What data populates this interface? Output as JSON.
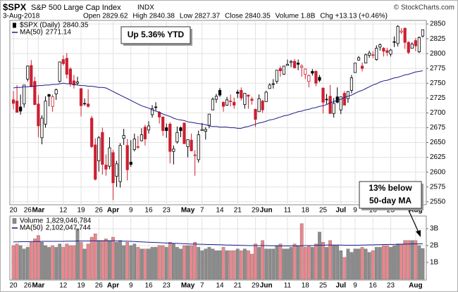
{
  "chart_data": [
    {
      "type": "candlestick",
      "title": "$SPX",
      "subtitle": "S&P 500 Large Cap Index",
      "exchange": "INDX",
      "source": "© StockCharts.com",
      "date": "3-Aug-2018",
      "quote": [
        "Open 2829.62",
        "High 2840.38",
        "Low 2827.37",
        "Close 2840.35",
        "Volume 1.8B",
        "Chg +13.13 (+0.46%)"
      ],
      "name": "$SPX (Daily)",
      "up_color": "#000000",
      "down_color": "#cc1f30",
      "categories": [
        "20",
        null,
        null,
        null,
        "26",
        null,
        null,
        "Mar",
        null,
        null,
        null,
        null,
        null,
        null,
        "12",
        null,
        null,
        null,
        null,
        "19",
        null,
        null,
        null,
        null,
        "26",
        null,
        null,
        null,
        "Apr",
        null,
        null,
        null,
        null,
        "9",
        null,
        null,
        null,
        null,
        "16",
        null,
        null,
        null,
        null,
        "23",
        null,
        null,
        null,
        null,
        null,
        "May",
        null,
        null,
        null,
        "7",
        null,
        null,
        null,
        null,
        "14",
        null,
        null,
        null,
        null,
        "21",
        null,
        null,
        null,
        null,
        "29",
        null,
        null,
        "Jun",
        null,
        null,
        null,
        null,
        null,
        "11",
        null,
        null,
        null,
        null,
        "18",
        null,
        null,
        null,
        null,
        "25",
        null,
        null,
        null,
        null,
        "Jul",
        null,
        null,
        null,
        "9",
        null,
        null,
        null,
        null,
        "16",
        null,
        null,
        null,
        null,
        "23",
        null,
        null,
        null,
        null,
        null,
        null,
        "Aug",
        null,
        null
      ],
      "open": [
        2722,
        2720,
        2710,
        2715,
        2757,
        2780,
        2753,
        2715,
        2658,
        2681,
        2731,
        2711,
        2732,
        2753,
        2790,
        2792,
        2774,
        2754,
        2750,
        2741,
        2715,
        2715,
        2691,
        2646,
        2619,
        2667,
        2612,
        2610,
        2633,
        2593,
        2584,
        2657,
        2645,
        2617,
        2638,
        2643,
        2653,
        2676,
        2671,
        2697,
        2710,
        2701,
        2693,
        2675,
        2681,
        2635,
        2651,
        2675,
        2683,
        2643,
        2654,
        2628,
        2621,
        2670,
        2669,
        2679,
        2705,
        2723,
        2738,
        2718,
        2713,
        2719,
        2718,
        2735,
        2738,
        2714,
        2730,
        2723,
        2706,
        2702,
        2720,
        2719,
        2741,
        2749,
        2753,
        2775,
        2765,
        2780,
        2785,
        2787,
        2784,
        2777,
        2765,
        2753,
        2770,
        2770,
        2760,
        2742,
        2722,
        2728,
        2699,
        2727,
        2705,
        2733,
        2724,
        2738,
        2768,
        2789,
        2779,
        2784,
        2797,
        2798,
        2790,
        2811,
        2809,
        2805,
        2799,
        2820,
        2817,
        2836,
        2843,
        2819,
        2809,
        2822,
        2803,
        2829.62
      ],
      "high": [
        2737,
        2747,
        2731,
        2747,
        2780,
        2789,
        2761,
        2730,
        2696,
        2728,
        2732,
        2731,
        2741,
        2786,
        2797,
        2801,
        2777,
        2764,
        2761,
        2741,
        2724,
        2740,
        2695,
        2657,
        2661,
        2675,
        2630,
        2659,
        2638,
        2619,
        2649,
        2673,
        2656,
        2654,
        2665,
        2661,
        2674,
        2680,
        2686,
        2713,
        2718,
        2703,
        2694,
        2682,
        2684,
        2645,
        2677,
        2677,
        2683,
        2655,
        2665,
        2637,
        2670,
        2683,
        2676,
        2698,
        2726,
        2732,
        2742,
        2719,
        2727,
        2731,
        2726,
        2739,
        2743,
        2733,
        2731,
        2727,
        2707,
        2731,
        2722,
        2737,
        2750,
        2757,
        2772,
        2779,
        2779,
        2790,
        2789,
        2791,
        2790,
        2782,
        2775,
        2765,
        2774,
        2772,
        2764,
        2742,
        2732,
        2747,
        2725,
        2743,
        2727,
        2737,
        2737,
        2764,
        2784,
        2796,
        2785,
        2800,
        2805,
        2804,
        2814,
        2817,
        2811,
        2810,
        2808,
        2829,
        2848,
        2843,
        2843,
        2821,
        2819,
        2826,
        2829,
        2840.38
      ],
      "low": [
        2706,
        2701,
        2697,
        2709,
        2753,
        2744,
        2713,
        2659,
        2647,
        2675,
        2711,
        2702,
        2722,
        2751,
        2780,
        2758,
        2744,
        2741,
        2747,
        2694,
        2712,
        2709,
        2641,
        2586,
        2601,
        2596,
        2594,
        2605,
        2553,
        2575,
        2574,
        2646,
        2586,
        2609,
        2635,
        2639,
        2652,
        2645,
        2665,
        2692,
        2704,
        2682,
        2661,
        2658,
        2615,
        2613,
        2648,
        2659,
        2648,
        2625,
        2635,
        2594,
        2616,
        2670,
        2655,
        2674,
        2705,
        2717,
        2727,
        2702,
        2712,
        2711,
        2707,
        2725,
        2721,
        2707,
        2707,
        2714,
        2676,
        2702,
        2700,
        2719,
        2741,
        2741,
        2749,
        2761,
        2764,
        2780,
        2777,
        2775,
        2772,
        2761,
        2757,
        2743,
        2763,
        2745,
        2752,
        2699,
        2715,
        2699,
        2692,
        2716,
        2698,
        2713,
        2717,
        2733,
        2768,
        2788,
        2770,
        2784,
        2793,
        2792,
        2788,
        2805,
        2795,
        2796,
        2795,
        2811,
        2812,
        2833,
        2808,
        2799,
        2809,
        2804,
        2801,
        2827.37
      ],
      "close": [
        2716,
        2701,
        2703,
        2747,
        2779,
        2744,
        2714,
        2678,
        2691,
        2720,
        2728,
        2727,
        2739,
        2786,
        2783,
        2765,
        2749,
        2747,
        2752,
        2712,
        2716,
        2711,
        2643,
        2588,
        2658,
        2613,
        2605,
        2641,
        2582,
        2614,
        2645,
        2662,
        2604,
        2613,
        2656,
        2642,
        2663,
        2656,
        2678,
        2707,
        2709,
        2693,
        2670,
        2670,
        2635,
        2639,
        2667,
        2670,
        2648,
        2655,
        2636,
        2629,
        2663,
        2672,
        2672,
        2698,
        2723,
        2728,
        2730,
        2711,
        2722,
        2720,
        2713,
        2733,
        2725,
        2733,
        2728,
        2721,
        2689,
        2724,
        2705,
        2735,
        2747,
        2749,
        2772,
        2771,
        2779,
        2782,
        2787,
        2776,
        2782,
        2779,
        2774,
        2763,
        2767,
        2750,
        2755,
        2718,
        2723,
        2699,
        2716,
        2718,
        2727,
        2713,
        2736,
        2759,
        2784,
        2793,
        2775,
        2798,
        2801,
        2798,
        2809,
        2815,
        2804,
        2802,
        2806,
        2820,
        2846,
        2838,
        2819,
        2802,
        2816,
        2813,
        2827,
        2840.35
      ],
      "series": [
        {
          "name": "MA(50)",
          "type": "line",
          "color": "#1c1c8a",
          "values": [
            2742,
            2743,
            2743,
            2744,
            2744,
            2745,
            2745,
            2746,
            2746,
            2747,
            2747,
            2748,
            2748,
            2749,
            2750,
            2749,
            2749,
            2748,
            2747,
            2746,
            2746,
            2745,
            2745,
            2744,
            2743,
            2743,
            2742,
            2739,
            2736,
            2733,
            2730,
            2727,
            2724,
            2721,
            2718,
            2715,
            2712,
            2710,
            2708,
            2705,
            2703,
            2701,
            2698,
            2696,
            2694,
            2691,
            2689,
            2688,
            2687,
            2685,
            2684,
            2683,
            2682,
            2681,
            2680,
            2678,
            2677,
            2677,
            2676,
            2676,
            2676,
            2675,
            2675,
            2674,
            2674,
            2676,
            2677,
            2679,
            2681,
            2683,
            2684,
            2686,
            2688,
            2689,
            2691,
            2693,
            2695,
            2696,
            2698,
            2700,
            2702,
            2703,
            2705,
            2706,
            2708,
            2709,
            2711,
            2712,
            2714,
            2717,
            2719,
            2721,
            2723,
            2726,
            2728,
            2730,
            2733,
            2736,
            2738,
            2741,
            2744,
            2747,
            2749,
            2752,
            2754,
            2755,
            2757,
            2759,
            2760,
            2762,
            2764,
            2765,
            2767,
            2769,
            2770,
            2771.14
          ]
        }
      ],
      "ylim": [
        2545,
        2856
      ],
      "yticks": [
        2550,
        2575,
        2600,
        2625,
        2650,
        2675,
        2700,
        2725,
        2750,
        2775,
        2800,
        2825,
        2850
      ],
      "grid": true,
      "legend": "upper left",
      "annotations": [
        {
          "text": [
            "Up 5.36% YTD"
          ]
        },
        {
          "text": [
            "13% below",
            "50-day MA"
          ]
        }
      ]
    },
    {
      "type": "bar",
      "categories": [
        "20",
        null,
        null,
        null,
        "26",
        null,
        null,
        "Mar",
        null,
        null,
        null,
        null,
        null,
        null,
        "12",
        null,
        null,
        null,
        null,
        "19",
        null,
        null,
        null,
        null,
        "26",
        null,
        null,
        null,
        "Apr",
        null,
        null,
        null,
        null,
        "9",
        null,
        null,
        null,
        null,
        "16",
        null,
        null,
        null,
        null,
        "23",
        null,
        null,
        null,
        null,
        null,
        "May",
        null,
        null,
        null,
        "7",
        null,
        null,
        null,
        null,
        "14",
        null,
        null,
        null,
        null,
        "21",
        null,
        null,
        null,
        null,
        "29",
        null,
        null,
        "Jun",
        null,
        null,
        null,
        null,
        null,
        "11",
        null,
        null,
        null,
        null,
        "18",
        null,
        null,
        null,
        null,
        "25",
        null,
        null,
        null,
        null,
        "Jul",
        null,
        null,
        null,
        "9",
        null,
        null,
        null,
        null,
        "16",
        null,
        null,
        null,
        null,
        "23",
        null,
        null,
        null,
        null,
        null,
        null,
        "Aug",
        null,
        null
      ],
      "series": [
        {
          "name": "Volume",
          "value_label": "1,829,046,784",
          "up_color": "#8c8c8c",
          "down_color": "#e8878d",
          "values": [
            2.0,
            2.1,
            2.0,
            1.8,
            1.9,
            2.2,
            2.4,
            2.6,
            2.2,
            2.0,
            1.9,
            2.0,
            1.9,
            2.1,
            1.9,
            2.1,
            2.0,
            2.0,
            3.0,
            2.2,
            1.8,
            2.1,
            2.5,
            2.7,
            2.3,
            2.3,
            2.4,
            2.3,
            2.5,
            2.2,
            2.3,
            2.0,
            2.2,
            2.0,
            2.1,
            1.9,
            1.8,
            1.8,
            1.8,
            1.9,
            1.9,
            2.0,
            2.0,
            1.9,
            2.2,
            2.1,
            1.9,
            1.8,
            2.0,
            2.0,
            2.0,
            2.2,
            1.9,
            1.7,
            1.8,
            1.9,
            1.8,
            1.7,
            1.7,
            1.9,
            1.7,
            1.7,
            1.7,
            1.8,
            1.7,
            1.8,
            1.7,
            1.5,
            2.1,
            1.9,
            2.3,
            1.8,
            1.8,
            1.8,
            2.0,
            2.1,
            1.8,
            1.8,
            1.9,
            2.1,
            2.0,
            3.3,
            1.9,
            2.0,
            1.9,
            2.1,
            2.8,
            2.2,
            1.9,
            2.3,
            2.0,
            2.0,
            1.7,
            1.3,
            1.8,
            1.6,
            1.8,
            1.8,
            1.9,
            1.8,
            1.6,
            1.7,
            1.9,
            1.9,
            2.0,
            2.0,
            1.9,
            2.0,
            2.1,
            2.1,
            2.3,
            2.3,
            2.3,
            2.3,
            2.0,
            1.829046784
          ]
        },
        {
          "name": "MA(50)",
          "value_label": "2,102,047,744",
          "type": "line",
          "color": "#1c1c8a",
          "values": [
            2.22,
            2.22,
            2.23,
            2.23,
            2.23,
            2.24,
            2.24,
            2.24,
            2.25,
            2.25,
            2.25,
            2.25,
            2.25,
            2.25,
            2.25,
            2.26,
            2.26,
            2.26,
            2.27,
            2.27,
            2.27,
            2.27,
            2.28,
            2.28,
            2.28,
            2.28,
            2.28,
            2.28,
            2.28,
            2.27,
            2.27,
            2.26,
            2.26,
            2.25,
            2.24,
            2.23,
            2.22,
            2.21,
            2.2,
            2.19,
            2.18,
            2.17,
            2.16,
            2.15,
            2.14,
            2.13,
            2.13,
            2.12,
            2.11,
            2.1,
            2.09,
            2.09,
            2.08,
            2.08,
            2.07,
            2.06,
            2.06,
            2.05,
            2.05,
            2.04,
            2.03,
            2.03,
            2.02,
            2.02,
            2.01,
            2.01,
            2.0,
            2.0,
            2.0,
            2.0,
            2.0,
            2.0,
            1.99,
            1.99,
            1.99,
            1.98,
            1.98,
            1.98,
            1.98,
            1.98,
            1.99,
            1.99,
            2.0,
            2.0,
            2.0,
            2.01,
            2.02,
            2.02,
            2.03,
            2.03,
            2.03,
            2.03,
            2.03,
            2.02,
            2.02,
            2.02,
            2.02,
            2.02,
            2.03,
            2.03,
            2.04,
            2.04,
            2.05,
            2.05,
            2.06,
            2.06,
            2.07,
            2.07,
            2.08,
            2.08,
            2.09,
            2.09,
            2.1,
            2.1,
            2.1,
            2.102047744
          ]
        }
      ],
      "ylim": [
        0,
        3.75
      ],
      "yticks": [
        {
          "value": 1,
          "label": "1B"
        },
        {
          "value": 2,
          "label": "2B"
        },
        {
          "value": 3,
          "label": "3B"
        }
      ],
      "grid": true,
      "legend": "upper left"
    }
  ]
}
